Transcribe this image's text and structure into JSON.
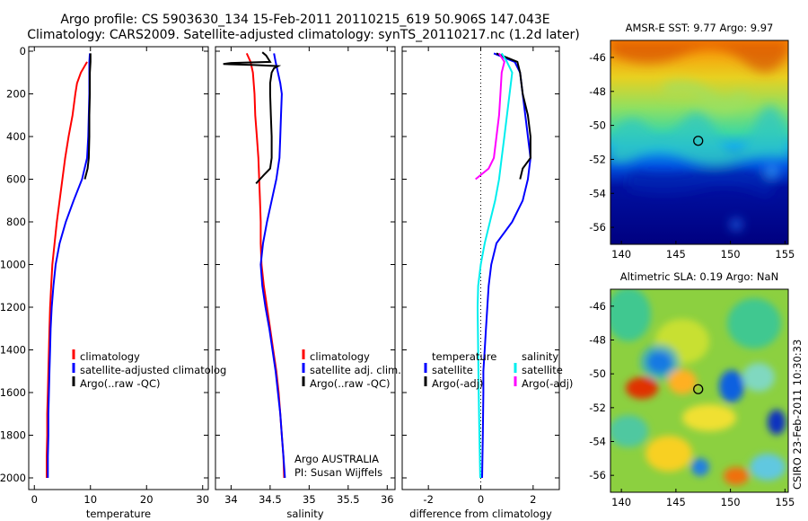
{
  "header": {
    "line1": "Argo profile: CS 5903630_134 15-Feb-2011 20110215_619 50.906S 147.043E",
    "line2": "Climatology: CARS2009. Satellite-adjusted climatology: synTS_20110217.nc (1.2d later)"
  },
  "credit": {
    "project": "Argo AUSTRALIA",
    "pi": "PI: Susan Wijffels"
  },
  "stamp": "CSIRO 23-Feb-2011 10:30:33",
  "colors": {
    "climatology": "#ff0000",
    "satellite": "#0000ff",
    "argo": "#000000",
    "satellite_salinity": "#00eeee",
    "argo_salinity": "#ff00ff"
  },
  "chart_data": [
    {
      "type": "line",
      "xlabel": "temperature",
      "ylabel": "",
      "xlim": [
        -1,
        31
      ],
      "ylim": [
        2050,
        0
      ],
      "yreversed": true,
      "xticks": [
        "0",
        "10",
        "20",
        "30"
      ],
      "xtick_values": [
        0,
        10,
        20,
        30
      ],
      "yticks": [
        "0",
        "200",
        "400",
        "600",
        "800",
        "1000",
        "1200",
        "1400",
        "1600",
        "1800",
        "2000"
      ],
      "ytick_values": [
        0,
        200,
        400,
        600,
        800,
        1000,
        1200,
        1400,
        1600,
        1800,
        2000
      ],
      "legend": {
        "position": "lower-right",
        "entries": [
          "climatology",
          "satellite-adjusted climatolog",
          "Argo(..raw -QC)"
        ]
      },
      "series": [
        {
          "name": "climatology",
          "color": "#ff0000",
          "depth": [
            50,
            100,
            150,
            200,
            300,
            400,
            500,
            600,
            700,
            800,
            900,
            1000,
            1100,
            1200,
            1300,
            1400,
            1500,
            1600,
            1700,
            1800,
            1900,
            2000
          ],
          "values": [
            9.4,
            8.3,
            7.6,
            7.3,
            6.8,
            6.1,
            5.5,
            5.0,
            4.5,
            4.0,
            3.6,
            3.2,
            3.0,
            2.8,
            2.7,
            2.6,
            2.5,
            2.4,
            2.3,
            2.3,
            2.2,
            2.2
          ]
        },
        {
          "name": "satellite-adjusted climatolog",
          "color": "#0000ff",
          "depth": [
            10,
            50,
            100,
            200,
            300,
            400,
            500,
            600,
            700,
            800,
            900,
            1000,
            1100,
            1200,
            1300,
            1400,
            1500,
            1600,
            1700,
            1800,
            1900,
            2000
          ],
          "values": [
            9.9,
            9.8,
            9.8,
            9.8,
            9.7,
            9.6,
            9.4,
            8.5,
            7.0,
            5.6,
            4.5,
            3.8,
            3.4,
            3.1,
            2.9,
            2.8,
            2.7,
            2.6,
            2.5,
            2.5,
            2.4,
            2.4
          ]
        },
        {
          "name": "Argo(..raw -QC)",
          "color": "#000000",
          "depth": [
            10,
            50,
            100,
            200,
            300,
            400,
            500,
            550,
            600
          ],
          "values": [
            10.0,
            10.0,
            9.9,
            9.9,
            9.8,
            9.8,
            9.7,
            9.5,
            9.0
          ]
        }
      ]
    },
    {
      "type": "line",
      "xlabel": "salinity",
      "ylabel": "",
      "xlim": [
        33.8,
        36.1
      ],
      "ylim": [
        2050,
        0
      ],
      "yreversed": true,
      "xticks": [
        "34",
        "34.5",
        "35",
        "35.5",
        "36"
      ],
      "xtick_values": [
        34,
        34.5,
        35,
        35.5,
        36
      ],
      "legend": {
        "position": "lower-right",
        "entries": [
          "climatology",
          "satellite adj. clim.",
          "Argo(..raw -QC)"
        ]
      },
      "series": [
        {
          "name": "climatology",
          "color": "#ff0000",
          "depth": [
            10,
            50,
            100,
            200,
            300,
            400,
            500,
            600,
            700,
            800,
            900,
            1000,
            1100,
            1200,
            1300,
            1400,
            1500,
            1600,
            1700,
            1800,
            1900,
            2000
          ],
          "values": [
            34.2,
            34.25,
            34.28,
            34.3,
            34.31,
            34.33,
            34.35,
            34.36,
            34.37,
            34.38,
            34.38,
            34.39,
            34.42,
            34.46,
            34.5,
            34.54,
            34.58,
            34.61,
            34.63,
            34.65,
            34.67,
            34.68
          ]
        },
        {
          "name": "satellite adj. clim.",
          "color": "#0000ff",
          "depth": [
            10,
            50,
            100,
            150,
            200,
            300,
            400,
            500,
            600,
            700,
            800,
            900,
            1000,
            1100,
            1200,
            1300,
            1400,
            1500,
            1600,
            1700,
            1800,
            1900,
            2000
          ],
          "values": [
            34.55,
            34.57,
            34.6,
            34.63,
            34.65,
            34.64,
            34.63,
            34.62,
            34.58,
            34.52,
            34.46,
            34.41,
            34.38,
            34.4,
            34.44,
            34.49,
            34.53,
            34.57,
            34.6,
            34.63,
            34.65,
            34.67,
            34.69
          ]
        },
        {
          "name": "Argo(..raw -QC)",
          "color": "#000000",
          "depth": [
            5,
            20,
            50,
            55,
            60,
            65,
            70,
            80,
            100,
            150,
            200,
            300,
            400,
            500,
            550,
            580,
            600,
            620
          ],
          "values": [
            34.4,
            34.45,
            34.5,
            34.0,
            33.9,
            34.3,
            34.6,
            34.55,
            34.52,
            34.5,
            34.5,
            34.51,
            34.52,
            34.52,
            34.5,
            34.42,
            34.37,
            34.32
          ]
        }
      ]
    },
    {
      "type": "line",
      "xlabel": "difference from climatology",
      "ylabel": "",
      "xlim": [
        -3,
        3
      ],
      "ylim": [
        2050,
        0
      ],
      "yreversed": true,
      "xticks": [
        "-2",
        "0",
        "2"
      ],
      "xtick_values": [
        -2,
        0,
        2
      ],
      "legend": {
        "position": "lower",
        "entries": [
          "temperature",
          "satellite",
          "Argo(-adj)",
          "salinity",
          "satellite",
          "Argo(-adj)"
        ]
      },
      "series": [
        {
          "name": "satellite",
          "group": "temperature",
          "color": "#0000ff",
          "depth": [
            10,
            50,
            100,
            200,
            300,
            400,
            500,
            600,
            700,
            800,
            900,
            1000,
            1100,
            1200,
            1300,
            1400,
            1500,
            1600,
            1800,
            2000
          ],
          "values": [
            0.5,
            1.3,
            1.5,
            1.6,
            1.7,
            1.8,
            1.9,
            1.8,
            1.6,
            1.2,
            0.6,
            0.4,
            0.3,
            0.25,
            0.2,
            0.15,
            0.1,
            0.1,
            0.08,
            0.05
          ]
        },
        {
          "name": "Argo(-adj)",
          "group": "temperature",
          "color": "#000000",
          "depth": [
            10,
            50,
            100,
            200,
            300,
            400,
            500,
            550,
            600
          ],
          "values": [
            0.6,
            1.4,
            1.5,
            1.6,
            1.8,
            1.9,
            1.9,
            1.6,
            1.5
          ]
        },
        {
          "name": "satellite",
          "group": "salinity",
          "color": "#00eeee",
          "depth": [
            10,
            50,
            100,
            200,
            300,
            400,
            500,
            600,
            700,
            800,
            900,
            1000,
            1100,
            1200,
            1400,
            1600,
            1800,
            2000
          ],
          "values": [
            0.8,
            1.0,
            1.2,
            1.1,
            1.0,
            0.9,
            0.8,
            0.7,
            0.55,
            0.35,
            0.15,
            0.0,
            -0.1,
            -0.12,
            -0.1,
            -0.08,
            -0.05,
            -0.02
          ]
        },
        {
          "name": "Argo(-adj)",
          "group": "salinity",
          "color": "#ff00ff",
          "depth": [
            10,
            50,
            100,
            200,
            300,
            400,
            500,
            550,
            600
          ],
          "values": [
            0.7,
            0.9,
            0.8,
            0.75,
            0.7,
            0.6,
            0.5,
            0.3,
            -0.2
          ]
        }
      ]
    },
    {
      "type": "heatmap",
      "title": "AMSR-E SST: 9.77 Argo: 9.97",
      "xticks": [
        "140",
        "145",
        "150",
        "155"
      ],
      "xtick_values": [
        140,
        145,
        150,
        155
      ],
      "yticks": [
        "-46",
        "-48",
        "-50",
        "-52",
        "-54",
        "-56"
      ],
      "ytick_values": [
        -46,
        -48,
        -50,
        -52,
        -54,
        -56
      ],
      "xlim": [
        139,
        155.3
      ],
      "ylim": [
        -57,
        -45
      ],
      "marker": {
        "lon": 147.043,
        "lat": -50.906
      }
    },
    {
      "type": "heatmap",
      "title": "Altimetric SLA: 0.19 Argo: NaN",
      "xticks": [
        "140",
        "145",
        "150",
        "155"
      ],
      "xtick_values": [
        140,
        145,
        150,
        155
      ],
      "yticks": [
        "-46",
        "-48",
        "-50",
        "-52",
        "-54",
        "-56"
      ],
      "ytick_values": [
        -46,
        -48,
        -50,
        -52,
        -54,
        -56
      ],
      "xlim": [
        139,
        155.3
      ],
      "ylim": [
        -57,
        -45
      ],
      "marker": {
        "lon": 147.043,
        "lat": -50.906
      }
    }
  ]
}
